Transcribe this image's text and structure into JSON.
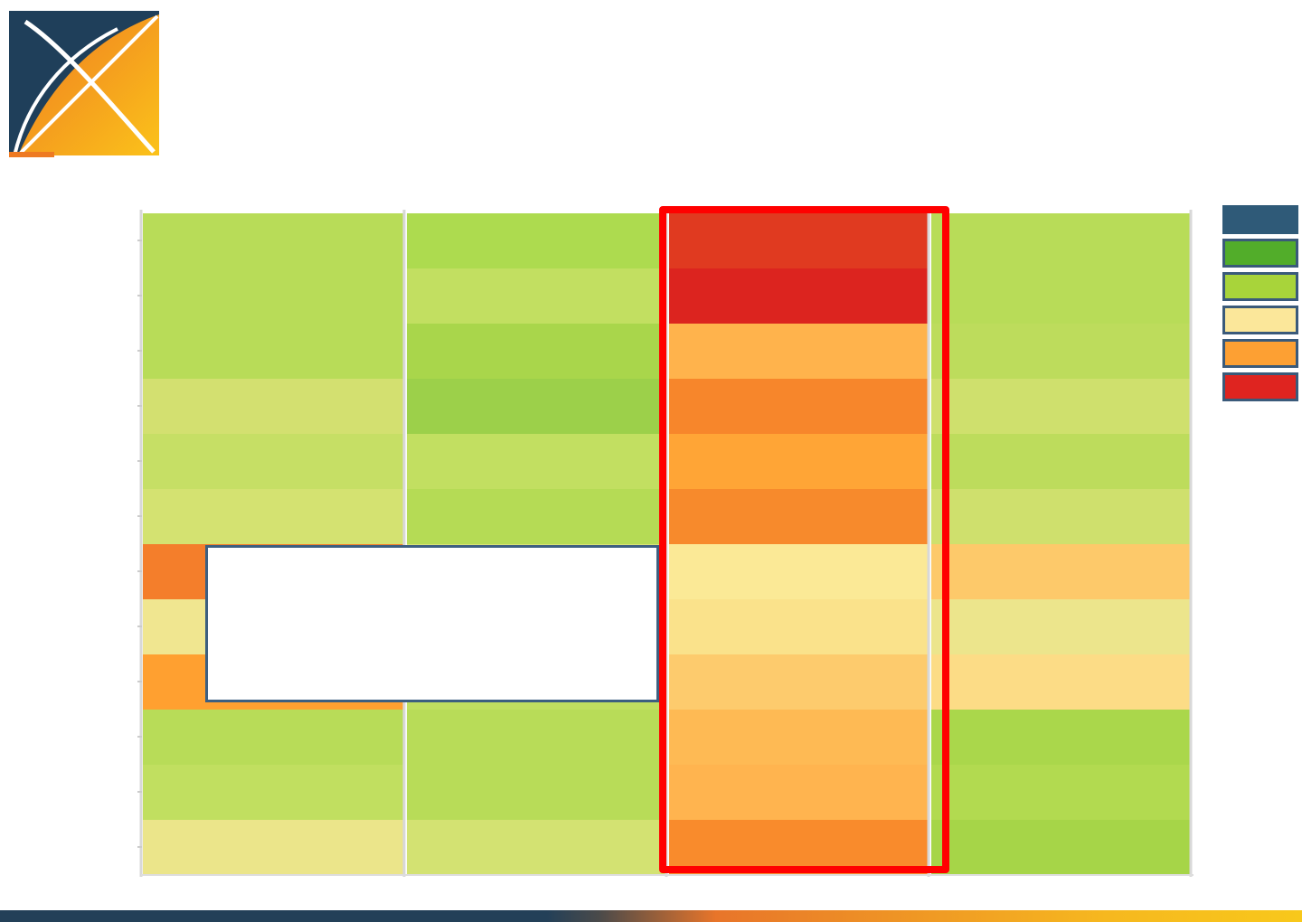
{
  "chart_data": {
    "type": "heatmap",
    "rows": 12,
    "columns": 4,
    "highlighted_column": 2,
    "palette": {
      "dark_green": "#52ad2a",
      "green": "#a8d43a",
      "light_yellow": "#fbe79a",
      "orange": "#fda033",
      "red": "#df2420",
      "header": "#2f5a78"
    },
    "cells": [
      [
        "#b8dc58",
        "#addb4f",
        "#e03a20",
        "#b8dc58"
      ],
      [
        "#b8dc58",
        "#c2df61",
        "#dc241f",
        "#b8dc58"
      ],
      [
        "#b8dc58",
        "#a9d64b",
        "#ffb34c",
        "#bddc5c"
      ],
      [
        "#d3e070",
        "#9cd04a",
        "#f7862b",
        "#cfe06d"
      ],
      [
        "#c6df65",
        "#c2df61",
        "#ffa536",
        "#bddc5c"
      ],
      [
        "#d4e271",
        "#b5db55",
        "#f78a2c",
        "#cfe06d"
      ],
      [
        "#f47e2b",
        "#d9e277",
        "#fbe996",
        "#fdc96a"
      ],
      [
        "#f0e690",
        "#c9e068",
        "#fae28b",
        "#ece58c"
      ],
      [
        "#ffa030",
        "#c0de60",
        "#fdcb6d",
        "#fcdc86"
      ],
      [
        "#b8dc58",
        "#b8dc58",
        "#feba54",
        "#aad74b"
      ],
      [
        "#c1df60",
        "#b8dc58",
        "#ffb44f",
        "#b2da50"
      ],
      [
        "#ebe58a",
        "#d3e272",
        "#f98b2c",
        "#a6d548"
      ]
    ]
  },
  "legend": {
    "swatches": [
      "#2f5a78",
      "#52ad2a",
      "#a8d43a",
      "#fbe79a",
      "#fda033",
      "#df2420"
    ]
  },
  "logo": {
    "colors": [
      "#1f3f5a",
      "#f07f22",
      "#fbbf1a"
    ]
  }
}
